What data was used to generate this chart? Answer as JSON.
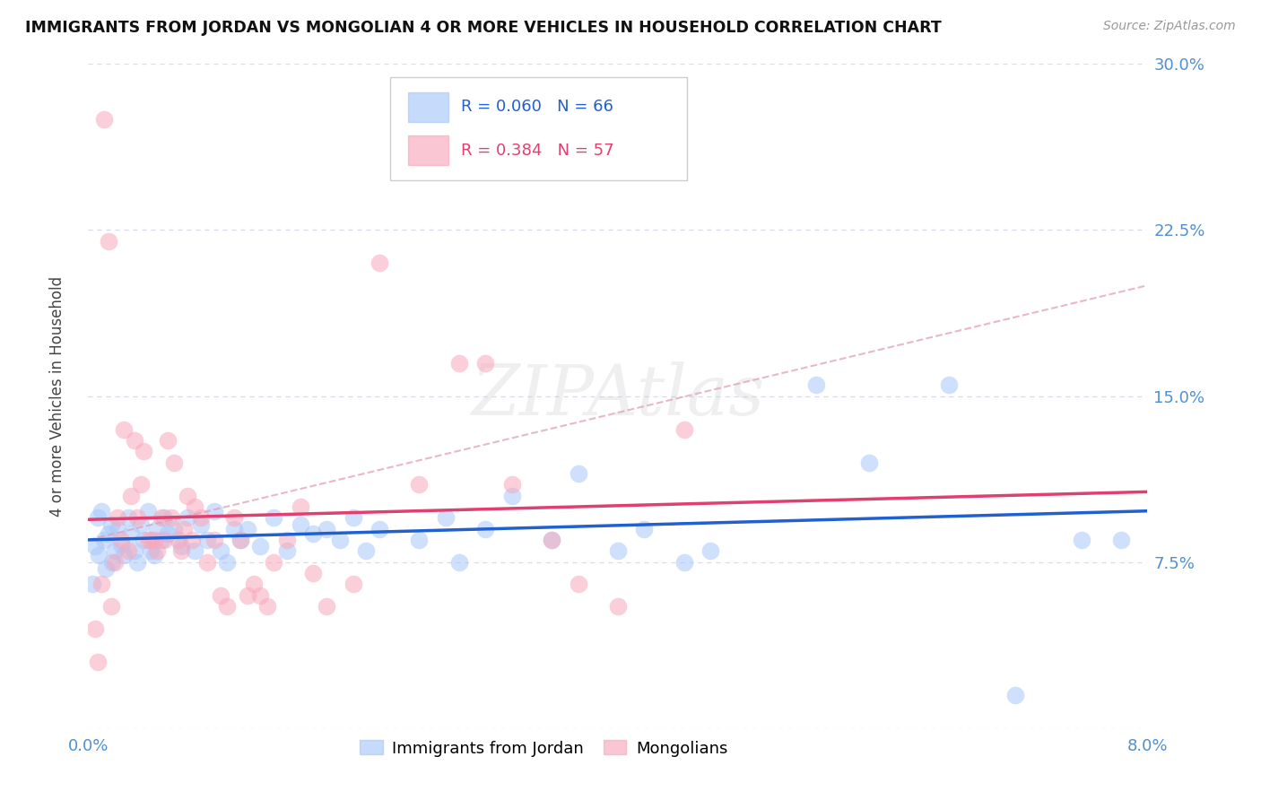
{
  "title": "IMMIGRANTS FROM JORDAN VS MONGOLIAN 4 OR MORE VEHICLES IN HOUSEHOLD CORRELATION CHART",
  "source": "Source: ZipAtlas.com",
  "ylabel": "4 or more Vehicles in Household",
  "xlim": [
    0.0,
    8.0
  ],
  "ylim": [
    0.0,
    30.0
  ],
  "jordan_R": 0.06,
  "jordan_N": 66,
  "mongolian_R": 0.384,
  "mongolian_N": 57,
  "jordan_color": "#a8c8fa",
  "mongolian_color": "#f8a8bc",
  "jordan_line_color": "#2060d0",
  "mongolian_line_color": "#e04070",
  "diagonal_line_color": "#e0a0b8",
  "background_color": "#ffffff",
  "grid_color": "#d8d8e8",
  "title_color": "#111111",
  "axis_label_color": "#5090d0",
  "jordan_points": [
    [
      0.05,
      8.2
    ],
    [
      0.07,
      9.5
    ],
    [
      0.08,
      7.8
    ],
    [
      0.1,
      9.8
    ],
    [
      0.12,
      8.5
    ],
    [
      0.13,
      7.2
    ],
    [
      0.15,
      8.8
    ],
    [
      0.17,
      9.2
    ],
    [
      0.18,
      7.5
    ],
    [
      0.2,
      8.0
    ],
    [
      0.22,
      9.0
    ],
    [
      0.25,
      8.3
    ],
    [
      0.27,
      7.8
    ],
    [
      0.3,
      9.5
    ],
    [
      0.32,
      8.8
    ],
    [
      0.35,
      8.0
    ],
    [
      0.37,
      7.5
    ],
    [
      0.4,
      9.2
    ],
    [
      0.42,
      8.5
    ],
    [
      0.45,
      9.8
    ],
    [
      0.47,
      8.0
    ],
    [
      0.5,
      7.8
    ],
    [
      0.52,
      9.0
    ],
    [
      0.55,
      8.5
    ],
    [
      0.57,
      9.5
    ],
    [
      0.6,
      8.8
    ],
    [
      0.65,
      9.0
    ],
    [
      0.7,
      8.2
    ],
    [
      0.75,
      9.5
    ],
    [
      0.8,
      8.0
    ],
    [
      0.85,
      9.2
    ],
    [
      0.9,
      8.5
    ],
    [
      0.95,
      9.8
    ],
    [
      1.0,
      8.0
    ],
    [
      1.05,
      7.5
    ],
    [
      1.1,
      9.0
    ],
    [
      1.15,
      8.5
    ],
    [
      1.2,
      9.0
    ],
    [
      1.3,
      8.2
    ],
    [
      1.4,
      9.5
    ],
    [
      1.5,
      8.0
    ],
    [
      1.6,
      9.2
    ],
    [
      1.7,
      8.8
    ],
    [
      1.8,
      9.0
    ],
    [
      1.9,
      8.5
    ],
    [
      2.0,
      9.5
    ],
    [
      2.1,
      8.0
    ],
    [
      2.2,
      9.0
    ],
    [
      2.5,
      8.5
    ],
    [
      2.7,
      9.5
    ],
    [
      2.8,
      7.5
    ],
    [
      3.0,
      9.0
    ],
    [
      3.2,
      10.5
    ],
    [
      3.5,
      8.5
    ],
    [
      3.7,
      11.5
    ],
    [
      4.0,
      8.0
    ],
    [
      4.2,
      9.0
    ],
    [
      4.5,
      7.5
    ],
    [
      4.7,
      8.0
    ],
    [
      5.5,
      15.5
    ],
    [
      5.9,
      12.0
    ],
    [
      6.5,
      15.5
    ],
    [
      7.0,
      1.5
    ],
    [
      7.5,
      8.5
    ],
    [
      7.8,
      8.5
    ],
    [
      0.03,
      6.5
    ]
  ],
  "mongolian_points": [
    [
      0.05,
      4.5
    ],
    [
      0.07,
      3.0
    ],
    [
      0.1,
      6.5
    ],
    [
      0.12,
      27.5
    ],
    [
      0.15,
      22.0
    ],
    [
      0.17,
      5.5
    ],
    [
      0.2,
      7.5
    ],
    [
      0.22,
      9.5
    ],
    [
      0.25,
      8.5
    ],
    [
      0.27,
      13.5
    ],
    [
      0.3,
      8.0
    ],
    [
      0.32,
      10.5
    ],
    [
      0.35,
      13.0
    ],
    [
      0.37,
      9.5
    ],
    [
      0.4,
      11.0
    ],
    [
      0.42,
      12.5
    ],
    [
      0.45,
      8.5
    ],
    [
      0.47,
      8.5
    ],
    [
      0.5,
      8.5
    ],
    [
      0.52,
      8.0
    ],
    [
      0.55,
      9.5
    ],
    [
      0.57,
      8.5
    ],
    [
      0.6,
      13.0
    ],
    [
      0.63,
      9.5
    ],
    [
      0.65,
      12.0
    ],
    [
      0.68,
      8.5
    ],
    [
      0.7,
      8.0
    ],
    [
      0.72,
      9.0
    ],
    [
      0.75,
      10.5
    ],
    [
      0.78,
      8.5
    ],
    [
      0.8,
      10.0
    ],
    [
      0.85,
      9.5
    ],
    [
      0.9,
      7.5
    ],
    [
      0.95,
      8.5
    ],
    [
      1.0,
      6.0
    ],
    [
      1.05,
      5.5
    ],
    [
      1.1,
      9.5
    ],
    [
      1.15,
      8.5
    ],
    [
      1.2,
      6.0
    ],
    [
      1.25,
      6.5
    ],
    [
      1.3,
      6.0
    ],
    [
      1.35,
      5.5
    ],
    [
      1.4,
      7.5
    ],
    [
      1.5,
      8.5
    ],
    [
      1.6,
      10.0
    ],
    [
      1.7,
      7.0
    ],
    [
      1.8,
      5.5
    ],
    [
      2.0,
      6.5
    ],
    [
      2.2,
      21.0
    ],
    [
      2.5,
      11.0
    ],
    [
      2.8,
      16.5
    ],
    [
      3.0,
      16.5
    ],
    [
      3.2,
      11.0
    ],
    [
      3.5,
      8.5
    ],
    [
      3.7,
      6.5
    ],
    [
      4.0,
      5.5
    ],
    [
      4.5,
      13.5
    ]
  ],
  "diag_x0": 0.0,
  "diag_y0": 8.5,
  "diag_x1": 8.0,
  "diag_y1": 20.0
}
